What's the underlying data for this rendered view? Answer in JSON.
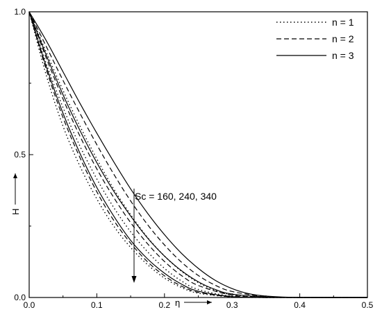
{
  "chart_data": {
    "type": "line",
    "title": "",
    "xlabel": "η",
    "ylabel": "H",
    "xlim": [
      0,
      0.5
    ],
    "ylim": [
      0,
      1.0
    ],
    "xticks": [
      0.0,
      0.1,
      0.2,
      0.3,
      0.4,
      0.5
    ],
    "xtick_labels": [
      "0.0",
      "0.1",
      "0.2",
      "0.3",
      "0.4",
      "0.5"
    ],
    "yticks": [
      0.0,
      0.5,
      1.0
    ],
    "ytick_labels": [
      "0.0",
      "0.5",
      "1.0"
    ],
    "grid": false,
    "legend": {
      "position": "top-right",
      "entries": [
        {
          "label": "n = 1",
          "style": "dotted"
        },
        {
          "label": "n = 2",
          "style": "dashed"
        },
        {
          "label": "n = 3",
          "style": "solid"
        }
      ]
    },
    "annotation": {
      "text": "Sc = 160, 240, 340",
      "arrow_direction": "down"
    },
    "series": [
      {
        "style": "dotted",
        "x": [
          0,
          0.025,
          0.05,
          0.075,
          0.1,
          0.125,
          0.15,
          0.175,
          0.2,
          0.225,
          0.25,
          0.3,
          0.35,
          0.4,
          0.5
        ],
        "y": [
          1.0,
          0.78,
          0.6,
          0.46,
          0.345,
          0.25,
          0.175,
          0.115,
          0.068,
          0.035,
          0.015,
          0.002,
          0.0,
          0.0,
          0.0
        ]
      },
      {
        "style": "dotted",
        "x": [
          0,
          0.025,
          0.05,
          0.075,
          0.1,
          0.125,
          0.15,
          0.175,
          0.2,
          0.225,
          0.25,
          0.3,
          0.35,
          0.4,
          0.5
        ],
        "y": [
          1.0,
          0.82,
          0.665,
          0.53,
          0.415,
          0.315,
          0.23,
          0.16,
          0.102,
          0.058,
          0.028,
          0.004,
          0.0,
          0.0,
          0.0
        ]
      },
      {
        "style": "dotted",
        "x": [
          0,
          0.025,
          0.05,
          0.075,
          0.1,
          0.125,
          0.15,
          0.175,
          0.2,
          0.225,
          0.25,
          0.275,
          0.3,
          0.35,
          0.4,
          0.5
        ],
        "y": [
          1.0,
          0.86,
          0.725,
          0.6,
          0.485,
          0.38,
          0.29,
          0.21,
          0.145,
          0.092,
          0.052,
          0.025,
          0.01,
          0.001,
          0.0,
          0.0
        ]
      },
      {
        "style": "dashed",
        "x": [
          0,
          0.025,
          0.05,
          0.075,
          0.1,
          0.125,
          0.15,
          0.175,
          0.2,
          0.225,
          0.25,
          0.3,
          0.35,
          0.4,
          0.5
        ],
        "y": [
          1.0,
          0.8,
          0.63,
          0.49,
          0.37,
          0.27,
          0.19,
          0.125,
          0.076,
          0.04,
          0.018,
          0.002,
          0.0,
          0.0,
          0.0
        ]
      },
      {
        "style": "dashed",
        "x": [
          0,
          0.025,
          0.05,
          0.075,
          0.1,
          0.125,
          0.15,
          0.175,
          0.2,
          0.225,
          0.25,
          0.3,
          0.35,
          0.4,
          0.5
        ],
        "y": [
          1.0,
          0.84,
          0.695,
          0.565,
          0.45,
          0.35,
          0.262,
          0.188,
          0.126,
          0.077,
          0.042,
          0.008,
          0.001,
          0.0,
          0.0
        ]
      },
      {
        "style": "dashed",
        "x": [
          0,
          0.025,
          0.05,
          0.075,
          0.1,
          0.125,
          0.15,
          0.175,
          0.2,
          0.225,
          0.25,
          0.275,
          0.3,
          0.35,
          0.4,
          0.5
        ],
        "y": [
          1.0,
          0.88,
          0.76,
          0.645,
          0.535,
          0.432,
          0.338,
          0.255,
          0.184,
          0.124,
          0.077,
          0.043,
          0.021,
          0.003,
          0.0,
          0.0
        ]
      },
      {
        "style": "solid",
        "x": [
          0,
          0.025,
          0.05,
          0.075,
          0.1,
          0.125,
          0.15,
          0.175,
          0.2,
          0.225,
          0.25,
          0.3,
          0.35,
          0.4,
          0.5
        ],
        "y": [
          1.0,
          0.81,
          0.645,
          0.505,
          0.385,
          0.285,
          0.2,
          0.135,
          0.085,
          0.047,
          0.022,
          0.003,
          0.0,
          0.0,
          0.0
        ]
      },
      {
        "style": "solid",
        "x": [
          0,
          0.025,
          0.05,
          0.075,
          0.1,
          0.125,
          0.15,
          0.175,
          0.2,
          0.225,
          0.25,
          0.275,
          0.3,
          0.35,
          0.4,
          0.5
        ],
        "y": [
          1.0,
          0.85,
          0.71,
          0.585,
          0.472,
          0.372,
          0.285,
          0.208,
          0.145,
          0.094,
          0.055,
          0.028,
          0.012,
          0.002,
          0.0,
          0.0
        ]
      },
      {
        "style": "solid",
        "x": [
          0,
          0.025,
          0.05,
          0.075,
          0.1,
          0.125,
          0.15,
          0.175,
          0.2,
          0.225,
          0.25,
          0.275,
          0.3,
          0.325,
          0.35,
          0.4,
          0.5
        ],
        "y": [
          1.0,
          0.9,
          0.79,
          0.68,
          0.575,
          0.475,
          0.38,
          0.295,
          0.22,
          0.155,
          0.102,
          0.06,
          0.031,
          0.013,
          0.005,
          0.0,
          0.0
        ]
      }
    ]
  }
}
